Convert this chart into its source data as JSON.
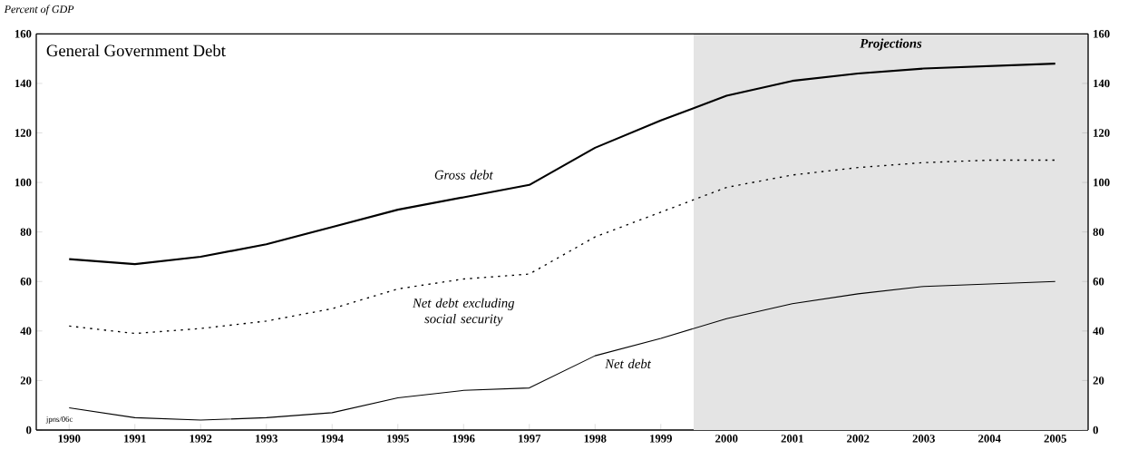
{
  "chart_data": {
    "type": "line",
    "title": "General Government Debt",
    "ylabel": "Percent of GDP",
    "x": [
      1990,
      1991,
      1992,
      1993,
      1994,
      1995,
      1996,
      1997,
      1998,
      1999,
      2000,
      2001,
      2002,
      2003,
      2004,
      2005
    ],
    "series": [
      {
        "name": "Gross debt",
        "color": "#000000",
        "line_style": "solid",
        "values": [
          69,
          67,
          70,
          75,
          82,
          89,
          94,
          99,
          114,
          125,
          135,
          141,
          144,
          146,
          147,
          148
        ]
      },
      {
        "name": "Net debt excluding social security",
        "color": "#000000",
        "line_style": "dotted",
        "values": [
          42,
          39,
          41,
          44,
          49,
          57,
          61,
          63,
          78,
          88,
          98,
          103,
          106,
          108,
          109,
          109
        ]
      },
      {
        "name": "Net debt",
        "color": "#000000",
        "line_style": "solid",
        "values": [
          9,
          5,
          4,
          5,
          7,
          13,
          16,
          17,
          30,
          37,
          45,
          51,
          55,
          58,
          59,
          60
        ]
      }
    ],
    "xlim": [
      1989.5,
      2005.5
    ],
    "xticks": [
      1990,
      1991,
      1992,
      1993,
      1994,
      1995,
      1996,
      1997,
      1998,
      1999,
      2000,
      2001,
      2002,
      2003,
      2004,
      2005
    ],
    "ylim": [
      0,
      160
    ],
    "yticks": [
      0,
      20,
      40,
      60,
      80,
      100,
      120,
      140,
      160
    ],
    "y2lim": [
      0,
      160
    ],
    "y2ticks": [
      0,
      20,
      40,
      60,
      80,
      100,
      120,
      140,
      160
    ],
    "bands": [
      {
        "axis": "x",
        "from": 1999.5,
        "to": 2005.5,
        "label": "Projections",
        "color": "#e4e4e4"
      }
    ],
    "annotations": [
      "jpns/06c"
    ]
  }
}
